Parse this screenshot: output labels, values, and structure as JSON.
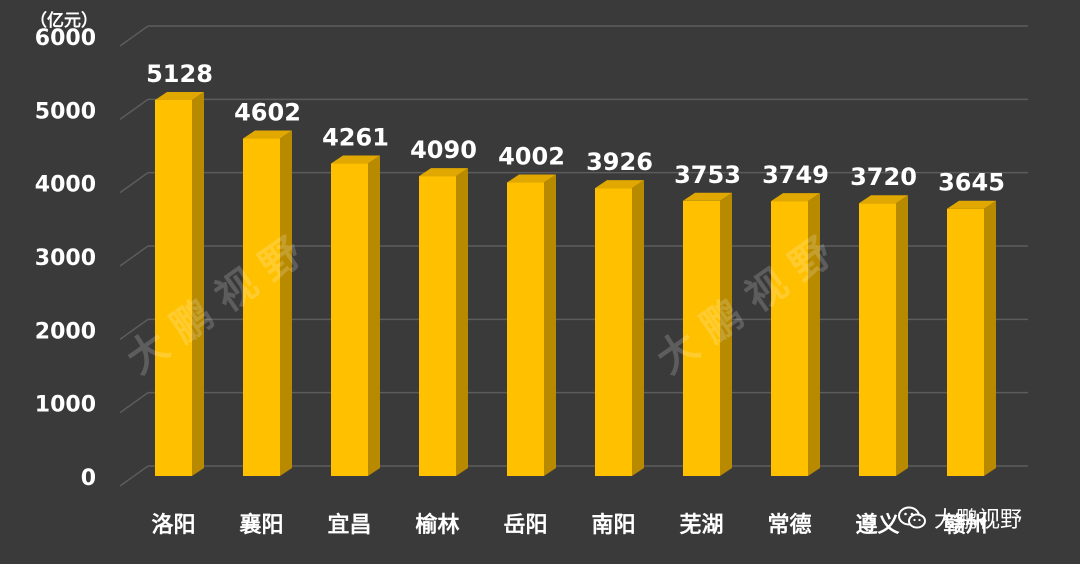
{
  "chart_data": {
    "type": "bar",
    "unit_label": "（亿元）",
    "categories": [
      "洛阳",
      "襄阳",
      "宜昌",
      "榆林",
      "岳阳",
      "南阳",
      "芜湖",
      "常德",
      "遵义",
      "赣州"
    ],
    "values": [
      5128,
      4602,
      4261,
      4090,
      4002,
      3926,
      3753,
      3749,
      3720,
      3645
    ],
    "yticks": [
      0,
      1000,
      2000,
      3000,
      4000,
      5000,
      6000
    ],
    "ylim": [
      0,
      6000
    ],
    "grid": true,
    "colors": {
      "bar_front": "#FFC000",
      "bar_side": "#B88A00",
      "bar_top": "#E0A800",
      "grid": "#5c5c5c",
      "text": "#ffffff",
      "background": "#3a3a3a"
    }
  },
  "watermark": {
    "text": "大鹏视野"
  },
  "brand": {
    "text": "大鹏视野",
    "icon": "wechat-icon"
  }
}
